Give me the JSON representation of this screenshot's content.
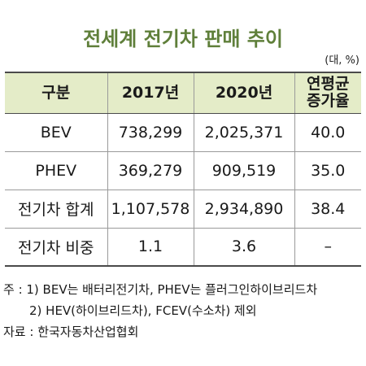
{
  "title": "전세계 전기차 판매 추이",
  "unit": "(대, %)",
  "table": {
    "headers": [
      "구분",
      "2017년",
      "2020년",
      "연평균\n증가율"
    ],
    "rows": [
      [
        "BEV",
        "738,299",
        "2,025,371",
        "40.0"
      ],
      [
        "PHEV",
        "369,279",
        "909,519",
        "35.0"
      ],
      [
        "전기차 합계",
        "1,107,578",
        "2,934,890",
        "38.4"
      ],
      [
        "전기차 비중",
        "1.1",
        "3.6",
        "–"
      ]
    ]
  },
  "notes": {
    "note1": "주 : 1) BEV는 배터리전기차, PHEV는 플러그인하이브리드차",
    "note2": "2) HEV(하이브리드차), FCEV(수소차) 제외",
    "source": "자료 : 한국자동차산업협회"
  }
}
